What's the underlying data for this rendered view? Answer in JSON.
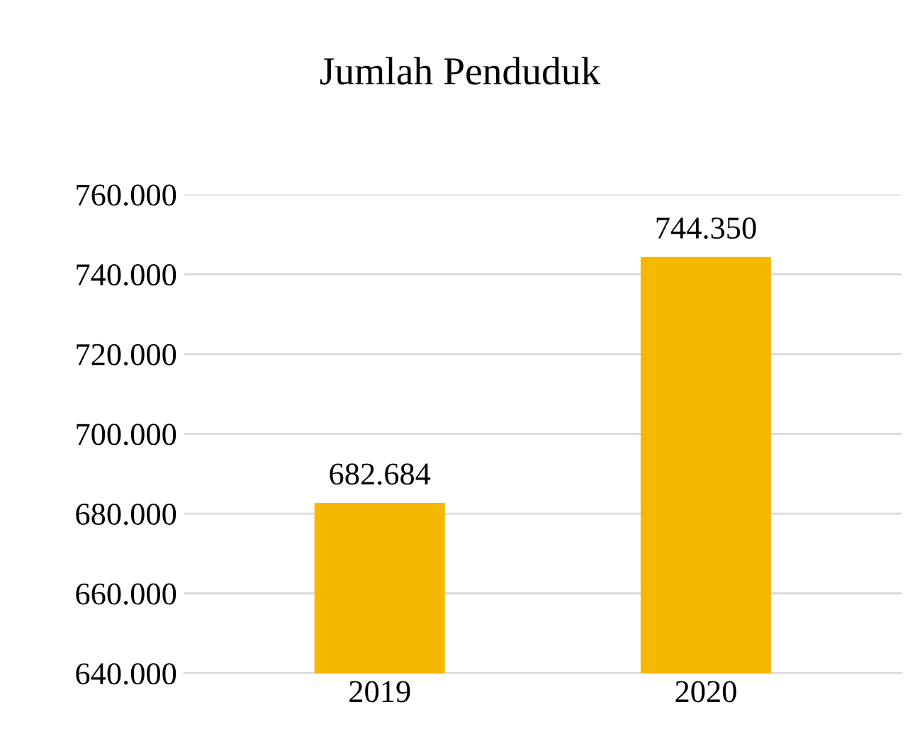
{
  "chart_data": {
    "type": "bar",
    "title": "Jumlah Penduduk",
    "categories": [
      "2019",
      "2020"
    ],
    "values": [
      682684,
      744350
    ],
    "value_labels": [
      "682.684",
      "744.350"
    ],
    "color": "#f5b800",
    "ylim": [
      640000,
      760000
    ],
    "yticks": [
      {
        "value": 640000,
        "label": "640.000"
      },
      {
        "value": 660000,
        "label": "660.000"
      },
      {
        "value": 680000,
        "label": "680.000"
      },
      {
        "value": 700000,
        "label": "700.000"
      },
      {
        "value": 720000,
        "label": "720.000"
      },
      {
        "value": 740000,
        "label": "740.000"
      },
      {
        "value": 760000,
        "label": "760.000"
      }
    ],
    "grid": "y"
  }
}
